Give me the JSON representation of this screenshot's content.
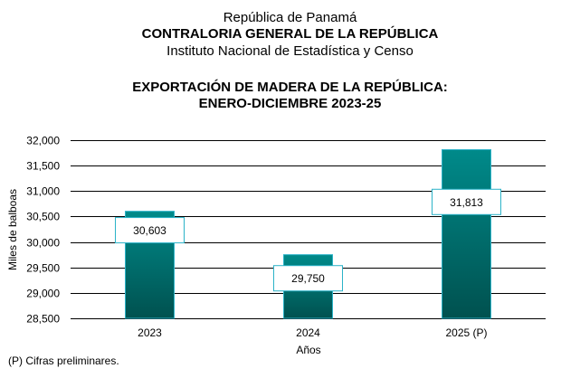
{
  "header": {
    "line1": "República de Panamá",
    "line2": "CONTRALORIA GENERAL DE LA REPÚBLICA",
    "line3": "Instituto  Nacional de Estadística y Censo"
  },
  "footnote": "(P) Cifras  preliminares.",
  "colors": {
    "bar_top": "#008a8a",
    "bar_bottom": "#00514f",
    "bar_border": "#2bb3c8",
    "label_border": "#2bb3c8",
    "gridline": "#000000"
  },
  "chart_data": {
    "type": "bar",
    "title": "EXPORTACIÓN DE MADERA DE LA REPÚBLICA:",
    "subtitle": "ENERO-DICIEMBRE 2023-25",
    "xlabel": "Años",
    "ylabel": "Miles de balboas",
    "categories": [
      "2023",
      "2024",
      "2025 (P)"
    ],
    "values": [
      30603,
      29750,
      31813
    ],
    "data_labels": [
      "30,603",
      "29,750",
      "31,813"
    ],
    "ylim": [
      28500,
      32000
    ],
    "yticks": [
      28500,
      29000,
      29500,
      30000,
      30500,
      31000,
      31500,
      32000
    ],
    "ytick_labels": [
      "28,500",
      "29,000",
      "29,500",
      "30,000",
      "30,500",
      "31,000",
      "31,500",
      "32,000"
    ],
    "grid": true,
    "legend": "none"
  }
}
